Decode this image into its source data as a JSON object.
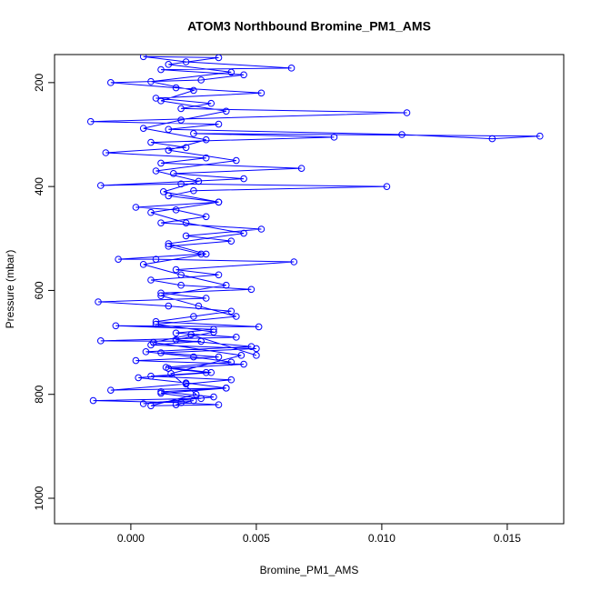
{
  "chart_data": {
    "type": "line",
    "title": "ATOM3 Northbound Bromine_PM1_AMS",
    "x_label": "Bromine_PM1_AMS",
    "y_label": "Pressure (mbar)",
    "color": "#0000ff",
    "markers": true,
    "x": [
      0.0018,
      0.0025,
      0.0005,
      0.0033,
      0.0012,
      0.0038,
      -0.0008,
      0.0022,
      0.004,
      0.0008,
      0.003,
      0.0015,
      0.0045,
      0.0002,
      0.0035,
      0.0012,
      0.005,
      0.0008,
      0.0028,
      -0.0012,
      0.0042,
      0.0018,
      0.0033,
      -0.0006,
      0.0051,
      0.001,
      0.0025,
      0.004,
      0.0015,
      -0.0013,
      0.003,
      0.0012,
      0.0048,
      0.002,
      0.0008,
      0.0035,
      0.0018,
      0.0065,
      0.001,
      -0.0005,
      0.0028,
      0.0015,
      0.004,
      0.0022,
      0.0052,
      0.0012,
      0.003,
      0.0018,
      0.0002,
      0.0035,
      0.0015,
      0.0025,
      0.0102,
      0.002,
      -0.0012,
      0.0045,
      0.0017,
      0.0068,
      0.0012,
      0.003,
      -0.001,
      0.0022,
      0.0008,
      0.0081,
      0.0025,
      0.0163,
      0.0144,
      0.0108,
      0.0015,
      0.0035,
      -0.0016,
      0.011,
      0.002,
      0.0032,
      0.001,
      0.0052,
      0.0018,
      -0.0008,
      0.0028,
      0.0045,
      0.0012,
      0.0064,
      0.0022,
      0.0005,
      0.0035,
      0.0015,
      0.004,
      0.0008,
      0.0025,
      0.0012,
      0.0038,
      0.002,
      0.0005,
      0.003,
      0.0015,
      0.0042,
      0.001,
      0.0027,
      0.0013,
      0.0035,
      0.0008,
      0.0022,
      0.0045,
      0.0015,
      0.003,
      0.0005,
      0.002,
      0.0038,
      0.0012,
      0.0027,
      0.0042,
      0.001,
      0.0033,
      0.0018,
      0.0048,
      0.0006,
      0.0025,
      0.004,
      0.0014,
      0.0032,
      0.0003,
      0.0022,
      0.0038,
      0.0012,
      0.0028,
      -0.0015,
      0.002,
      0.0035,
      0.0008,
      0.0026,
      0.0016,
      0.0044,
      0.0009,
      0.0024,
      0.005
    ],
    "values": [
      820,
      812,
      818,
      805,
      795,
      788,
      792,
      780,
      772,
      765,
      758,
      750,
      742,
      735,
      728,
      720,
      712,
      705,
      698,
      697,
      690,
      682,
      675,
      668,
      670,
      660,
      650,
      640,
      630,
      622,
      615,
      605,
      598,
      590,
      580,
      570,
      560,
      545,
      540,
      540,
      530,
      515,
      505,
      495,
      482,
      470,
      458,
      445,
      440,
      430,
      418,
      408,
      400,
      395,
      398,
      385,
      375,
      365,
      355,
      345,
      335,
      325,
      315,
      305,
      298,
      303,
      308,
      300,
      290,
      280,
      275,
      258,
      250,
      240,
      230,
      220,
      210,
      200,
      195,
      185,
      175,
      172,
      160,
      150,
      152,
      165,
      180,
      198,
      215,
      235,
      255,
      272,
      288,
      310,
      330,
      350,
      370,
      390,
      410,
      430,
      450,
      470,
      490,
      510,
      530,
      550,
      570,
      590,
      610,
      630,
      650,
      665,
      680,
      695,
      708,
      718,
      728,
      738,
      748,
      758,
      768,
      778,
      788,
      798,
      808,
      812,
      816,
      820,
      822,
      800,
      760,
      725,
      700,
      685,
      725
    ],
    "xlim": [
      -0.00304,
      0.01725
    ],
    "xticks": [
      {
        "value": 0,
        "label": "0.000"
      },
      {
        "value": 0.005,
        "label": "0.005"
      },
      {
        "value": 0.01,
        "label": "0.010"
      },
      {
        "value": 0.015,
        "label": "0.015"
      }
    ],
    "ylim": [
      1049,
      146
    ],
    "yticks": [
      200,
      400,
      600,
      800,
      1000
    ]
  }
}
